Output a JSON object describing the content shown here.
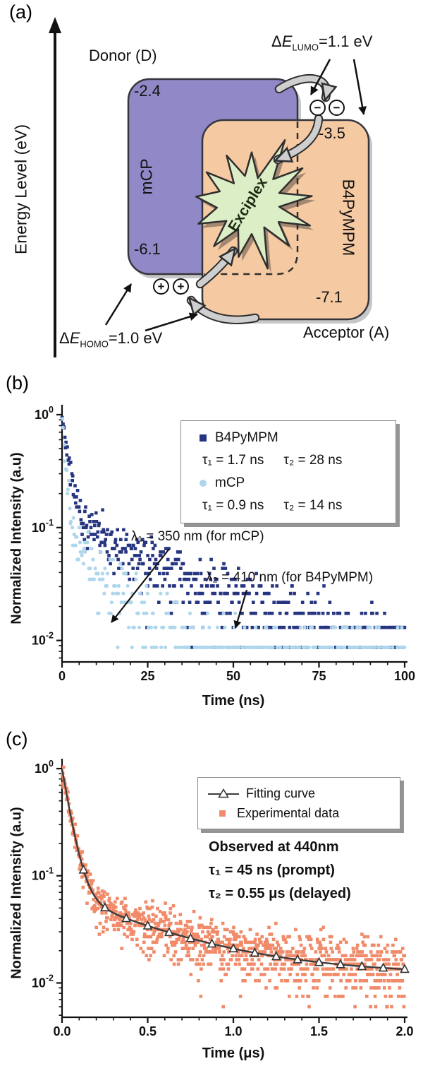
{
  "figure": {
    "background": "#ffffff"
  },
  "panel_a": {
    "label": "(a)",
    "energy_axis_label": "Energy Level (eV)",
    "donor_label": "Donor (D)",
    "acceptor_label": "Acceptor (A)",
    "donor": {
      "name": "mCP",
      "lumo": "-2.4",
      "homo": "-6.1",
      "color": "#9189c7"
    },
    "acceptor": {
      "name": "B4PyMPM",
      "lumo": "-3.5",
      "homo": "-7.1",
      "color": "#f5c9a2"
    },
    "exciplex": {
      "label": "Exciplex",
      "color": "#dceec5"
    },
    "delta_lumo": {
      "delta": "Δ",
      "symbol": "E",
      "sub": "LUMO",
      "value": "=1.1 eV"
    },
    "delta_homo": {
      "delta": "Δ",
      "symbol": "E",
      "sub": "HOMO",
      "value": "=1.0 eV"
    },
    "electron_symbol": "−",
    "hole_symbol": "+"
  },
  "panel_b": {
    "label": "(b)"
  },
  "panel_c": {
    "label": "(c)"
  },
  "chart_data": [
    {
      "type": "scatter",
      "panel": "b",
      "xlabel": "Time (ns)",
      "ylabel": "Normalized Intensity (a.u)",
      "xlim": [
        0,
        100
      ],
      "x_ticks": [
        0,
        25,
        50,
        75,
        100
      ],
      "x_minor_step": 5,
      "y_scale": "log",
      "y_tick_exponents": [
        0,
        -1,
        -2
      ],
      "ylim_exponents": [
        0,
        -2.19
      ],
      "legend": [
        {
          "name": "B4PyMPM",
          "marker": "square",
          "color": "#273480",
          "tau1": "τ₁ = 1.7 ns",
          "tau2": "τ₂ = 28 ns"
        },
        {
          "name": "mCP",
          "marker": "circle",
          "color": "#aed6ec",
          "tau1": "τ₁ = 0.9 ns",
          "tau2": "τ₂ = 14 ns"
        }
      ],
      "annotations": [
        "λ₁ = 350 nm (for mCP)",
        "λ₂ = 410 nm (for B4PyMPM)"
      ],
      "series": [
        {
          "name": "B4PyMPM",
          "marker": "square",
          "color": "#273480",
          "decay_model": {
            "a1": 0.88,
            "tau1": 1.7,
            "a2": 0.12,
            "tau2": 28,
            "background": 0.004
          },
          "n_points": 520,
          "count_scale": 230,
          "count_floor": 2
        },
        {
          "name": "mCP",
          "marker": "circle",
          "color": "#aed6ec",
          "decay_model": {
            "a1": 0.92,
            "tau1": 0.9,
            "a2": 0.08,
            "tau2": 14,
            "background": 0.0025
          },
          "n_points": 430,
          "count_scale": 230,
          "count_floor": 2,
          "floor_thin": 0.5
        }
      ]
    },
    {
      "type": "scatter",
      "panel": "c",
      "xlabel": "Time (μs)",
      "ylabel": "Normalized Intensity (a.u)",
      "xlim": [
        0,
        2
      ],
      "x_ticks": [
        "0.0",
        "0.5",
        "1.0",
        "1.5",
        "2.0"
      ],
      "x_minor_step": 0.1,
      "y_scale": "log",
      "y_tick_exponents": [
        0,
        -1,
        -2
      ],
      "ylim_exponents": [
        0,
        -2.32
      ],
      "legend": [
        {
          "name": "Fitting curve",
          "marker": "triangle-line",
          "color": "#3c3c3c"
        },
        {
          "name": "Experimental data",
          "marker": "square",
          "color": "#f18a68"
        }
      ],
      "notes": [
        "Observed at 440nm",
        "τ₁ = 45 ns (prompt)",
        "τ₂ = 0.55 μs (delayed)"
      ],
      "series": [
        {
          "name": "Experimental data",
          "marker": "square",
          "color": "#f18a68",
          "decay_model": {
            "a1": 0.93,
            "tau1": 0.045,
            "a2": 0.055,
            "tau2": 0.55,
            "background": 0.012
          },
          "n_points": 1100,
          "count_scale": 667,
          "count_floor": 4,
          "jitter": 0.12
        }
      ],
      "fit": {
        "name": "Fitting curve",
        "color": "#3c3c3c",
        "decay_model": {
          "a1": 0.93,
          "tau1": 0.045,
          "a2": 0.055,
          "tau2": 0.55,
          "background": 0.012
        },
        "marker_step": 0.125
      }
    }
  ]
}
